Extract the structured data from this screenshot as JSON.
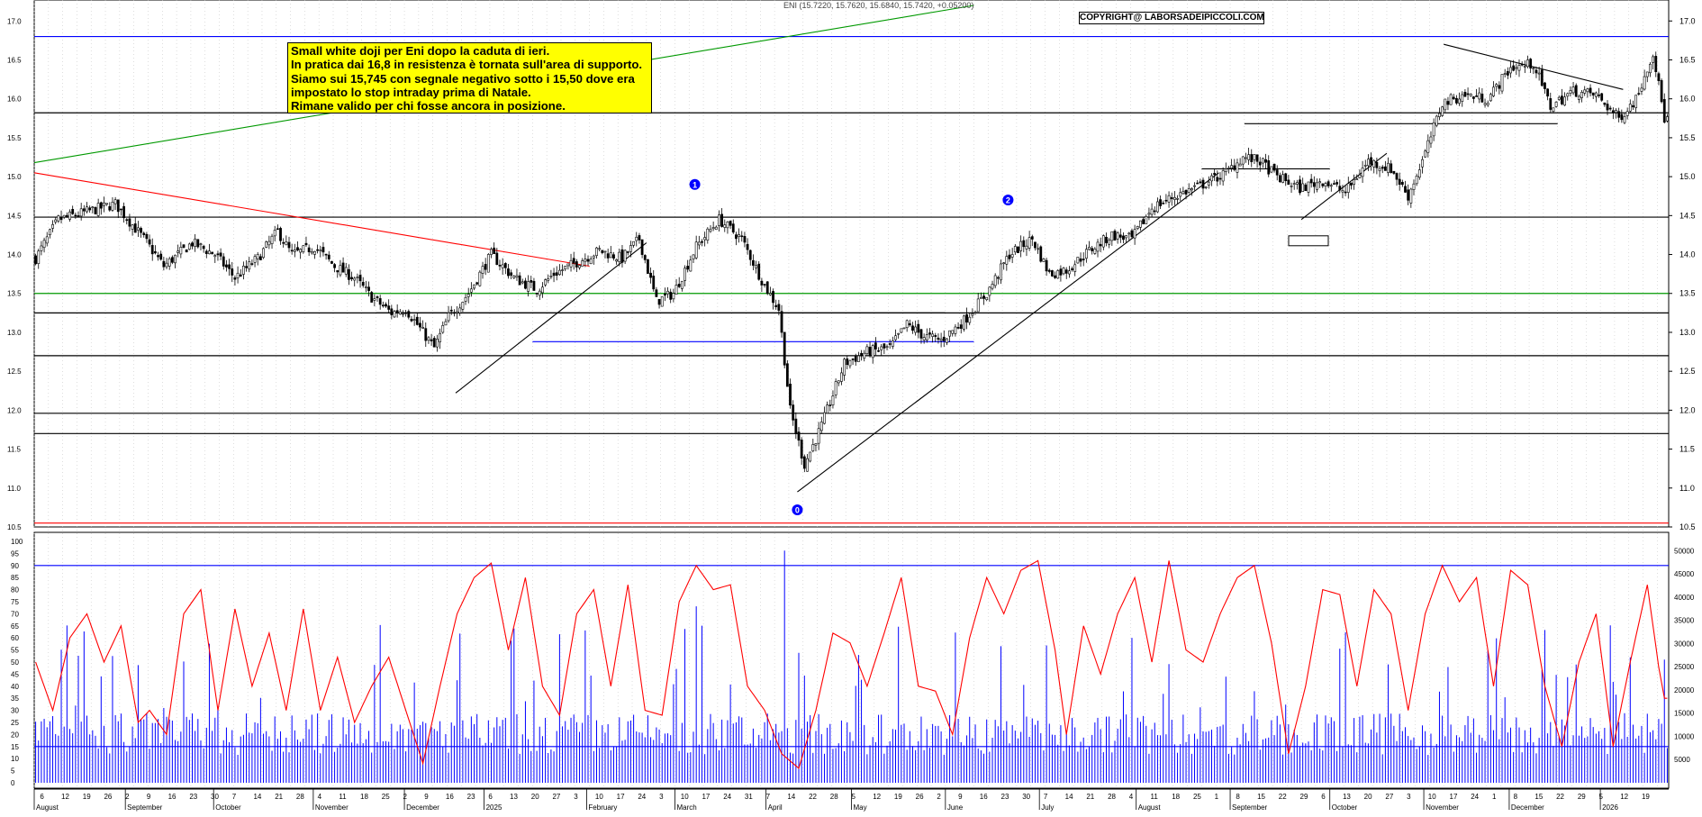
{
  "header": {
    "quote": "ENI (15.7220, 15.7620, 15.6840, 15.7420, +0.05200)",
    "copyright": "COPYRIGHT@ LABORSADEIPICCOLI.COM"
  },
  "note": {
    "lines": [
      "Small white doji per Eni dopo la caduta di ieri.",
      "In pratica dai 16,8 in resistenza è tornata sull'area di supporto.",
      "Siamo sui 15,745 con segnale negativo sotto i 15,50 dove era",
      "impostato lo stop intraday prima di Natale.",
      "Rimane valido per chi fosse ancora in posizione."
    ]
  },
  "colors": {
    "candle": "#000000",
    "oscillator": "#ff0000",
    "volume": "#0000ff",
    "support_lines": "#000000",
    "green_lines": "#009900",
    "blue_lines": "#0000ff",
    "red_trendline": "#ff0000",
    "note_background": "#ffff00"
  },
  "chart_data": [
    {
      "type": "candlestick",
      "title": "",
      "ylim": [
        10.5,
        17.2
      ],
      "y_ticks": [
        "10.5",
        "11.0",
        "11.5",
        "12.0",
        "12.5",
        "13.0",
        "13.5",
        "14.0",
        "14.5",
        "15.0",
        "15.5",
        "16.0",
        "16.5",
        "17.0"
      ],
      "close_path": [
        [
          0,
          13.95
        ],
        [
          8,
          14.45
        ],
        [
          18,
          14.55
        ],
        [
          28,
          14.65
        ],
        [
          38,
          14.2
        ],
        [
          45,
          13.85
        ],
        [
          55,
          14.15
        ],
        [
          63,
          14.0
        ],
        [
          70,
          13.7
        ],
        [
          78,
          13.95
        ],
        [
          85,
          14.3
        ],
        [
          90,
          14.0
        ],
        [
          98,
          14.1
        ],
        [
          105,
          13.85
        ],
        [
          112,
          13.7
        ],
        [
          118,
          13.45
        ],
        [
          125,
          13.25
        ],
        [
          130,
          13.3
        ],
        [
          136,
          13.0
        ],
        [
          140,
          12.8
        ],
        [
          145,
          13.2
        ],
        [
          152,
          13.5
        ],
        [
          160,
          14.0
        ],
        [
          168,
          13.7
        ],
        [
          176,
          13.55
        ],
        [
          182,
          13.75
        ],
        [
          190,
          13.9
        ],
        [
          198,
          14.05
        ],
        [
          206,
          13.95
        ],
        [
          212,
          14.2
        ],
        [
          218,
          13.4
        ],
        [
          224,
          13.5
        ],
        [
          232,
          14.1
        ],
        [
          240,
          14.45
        ],
        [
          248,
          14.2
        ],
        [
          256,
          13.6
        ],
        [
          261,
          13.3
        ],
        [
          265,
          12.0
        ],
        [
          270,
          11.3
        ],
        [
          276,
          11.8
        ],
        [
          284,
          12.6
        ],
        [
          292,
          12.75
        ],
        [
          300,
          12.8
        ],
        [
          306,
          13.1
        ],
        [
          312,
          12.95
        ],
        [
          318,
          12.9
        ],
        [
          326,
          13.15
        ],
        [
          334,
          13.5
        ],
        [
          342,
          14.0
        ],
        [
          350,
          14.2
        ],
        [
          356,
          13.75
        ],
        [
          362,
          13.8
        ],
        [
          370,
          14.05
        ],
        [
          378,
          14.25
        ],
        [
          385,
          14.2
        ],
        [
          392,
          14.6
        ],
        [
          400,
          14.75
        ],
        [
          410,
          14.9
        ],
        [
          418,
          15.05
        ],
        [
          424,
          15.25
        ],
        [
          430,
          15.2
        ],
        [
          436,
          15.0
        ],
        [
          444,
          14.85
        ],
        [
          452,
          14.95
        ],
        [
          460,
          14.8
        ],
        [
          468,
          15.2
        ],
        [
          476,
          15.1
        ],
        [
          482,
          14.75
        ],
        [
          488,
          15.3
        ],
        [
          494,
          15.95
        ],
        [
          502,
          16.05
        ],
        [
          510,
          16.0
        ],
        [
          518,
          16.4
        ],
        [
          526,
          16.45
        ],
        [
          532,
          15.9
        ],
        [
          540,
          16.1
        ],
        [
          548,
          16.05
        ],
        [
          556,
          15.75
        ],
        [
          562,
          16.0
        ],
        [
          568,
          16.6
        ],
        [
          572,
          15.745
        ]
      ],
      "indicators": [
        {
          "label": "0",
          "note": "cerchio blu"
        },
        {
          "label": "1",
          "note": "cerchio blu"
        },
        {
          "label": "2",
          "note": "cerchio blu"
        }
      ],
      "horizontal_levels": [
        {
          "value": 16.8,
          "color": "blue"
        },
        {
          "value": 15.82,
          "color": "black"
        },
        {
          "value": 14.48,
          "color": "black"
        },
        {
          "value": 13.5,
          "color": "green"
        },
        {
          "value": 13.25,
          "color": "black"
        },
        {
          "value": 12.7,
          "color": "black"
        },
        {
          "value": 11.96,
          "color": "black"
        },
        {
          "value": 11.7,
          "color": "black"
        },
        {
          "value": 10.55,
          "color": "red"
        }
      ]
    },
    {
      "type": "line+bar",
      "title": "",
      "oscillator_ticks": [
        "0",
        "5",
        "10",
        "15",
        "20",
        "25",
        "30",
        "35",
        "40",
        "45",
        "50",
        "55",
        "60",
        "65",
        "70",
        "75",
        "80",
        "85",
        "90",
        "95",
        "100"
      ],
      "volume_ticks": [
        "5000",
        "10000",
        "15000",
        "20000",
        "25000",
        "30000",
        "35000",
        "40000",
        "45000",
        "50000"
      ],
      "oscillator_ylim": [
        0,
        100
      ],
      "oscillator_levels": [
        90,
        15
      ],
      "oscillator_path": [
        [
          0,
          50
        ],
        [
          6,
          30
        ],
        [
          12,
          60
        ],
        [
          18,
          70
        ],
        [
          24,
          50
        ],
        [
          30,
          65
        ],
        [
          36,
          25
        ],
        [
          40,
          30
        ],
        [
          46,
          20
        ],
        [
          52,
          70
        ],
        [
          58,
          80
        ],
        [
          64,
          30
        ],
        [
          70,
          72
        ],
        [
          76,
          40
        ],
        [
          82,
          62
        ],
        [
          88,
          30
        ],
        [
          94,
          72
        ],
        [
          100,
          30
        ],
        [
          106,
          52
        ],
        [
          112,
          25
        ],
        [
          118,
          40
        ],
        [
          124,
          52
        ],
        [
          130,
          30
        ],
        [
          136,
          8
        ],
        [
          142,
          40
        ],
        [
          148,
          70
        ],
        [
          154,
          85
        ],
        [
          160,
          91
        ],
        [
          166,
          55
        ],
        [
          172,
          85
        ],
        [
          178,
          40
        ],
        [
          184,
          28
        ],
        [
          190,
          70
        ],
        [
          196,
          80
        ],
        [
          202,
          40
        ],
        [
          208,
          82
        ],
        [
          214,
          30
        ],
        [
          220,
          28
        ],
        [
          226,
          75
        ],
        [
          232,
          90
        ],
        [
          238,
          80
        ],
        [
          244,
          82
        ],
        [
          250,
          40
        ],
        [
          256,
          30
        ],
        [
          262,
          12
        ],
        [
          268,
          6
        ],
        [
          274,
          30
        ],
        [
          280,
          62
        ],
        [
          286,
          58
        ],
        [
          292,
          40
        ],
        [
          298,
          62
        ],
        [
          304,
          85
        ],
        [
          310,
          40
        ],
        [
          316,
          38
        ],
        [
          322,
          20
        ],
        [
          328,
          60
        ],
        [
          334,
          85
        ],
        [
          340,
          70
        ],
        [
          346,
          88
        ],
        [
          352,
          92
        ],
        [
          358,
          55
        ],
        [
          362,
          20
        ],
        [
          368,
          65
        ],
        [
          374,
          45
        ],
        [
          380,
          70
        ],
        [
          386,
          85
        ],
        [
          392,
          50
        ],
        [
          398,
          92
        ],
        [
          404,
          55
        ],
        [
          410,
          50
        ],
        [
          416,
          70
        ],
        [
          422,
          85
        ],
        [
          428,
          90
        ],
        [
          434,
          58
        ],
        [
          440,
          12
        ],
        [
          446,
          40
        ],
        [
          452,
          80
        ],
        [
          458,
          78
        ],
        [
          464,
          40
        ],
        [
          470,
          80
        ],
        [
          476,
          70
        ],
        [
          482,
          30
        ],
        [
          488,
          70
        ],
        [
          494,
          90
        ],
        [
          500,
          75
        ],
        [
          506,
          85
        ],
        [
          512,
          40
        ],
        [
          518,
          88
        ],
        [
          524,
          82
        ],
        [
          530,
          40
        ],
        [
          536,
          15
        ],
        [
          542,
          50
        ],
        [
          548,
          70
        ],
        [
          554,
          15
        ],
        [
          560,
          50
        ],
        [
          566,
          82
        ],
        [
          570,
          48
        ],
        [
          572,
          35
        ]
      ],
      "volume_note": "barre blu di volume giornaliero"
    }
  ],
  "x_axis": {
    "months": [
      {
        "label": "August",
        "pos": 0
      },
      {
        "label": "September",
        "pos": 32
      },
      {
        "label": "October",
        "pos": 63
      },
      {
        "label": "November",
        "pos": 98
      },
      {
        "label": "December",
        "pos": 130
      },
      {
        "label": "2025",
        "pos": 158
      },
      {
        "label": "February",
        "pos": 194
      },
      {
        "label": "March",
        "pos": 225
      },
      {
        "label": "April",
        "pos": 257
      },
      {
        "label": "May",
        "pos": 287
      },
      {
        "label": "June",
        "pos": 320
      },
      {
        "label": "July",
        "pos": 353
      },
      {
        "label": "August",
        "pos": 387
      },
      {
        "label": "September",
        "pos": 420
      },
      {
        "label": "October",
        "pos": 455
      },
      {
        "label": "November",
        "pos": 488
      },
      {
        "label": "December",
        "pos": 518
      },
      {
        "label": "2026",
        "pos": 550
      }
    ],
    "days": [
      "6",
      "12",
      "19",
      "26",
      "2",
      "9",
      "16",
      "23",
      "30",
      "7",
      "14",
      "21",
      "28",
      "4",
      "11",
      "18",
      "25",
      "2",
      "9",
      "16",
      "23",
      "6",
      "13",
      "20",
      "27",
      "3",
      "10",
      "17",
      "24",
      "3",
      "10",
      "17",
      "24",
      "31",
      "7",
      "14",
      "22",
      "28",
      "5",
      "12",
      "19",
      "26",
      "2",
      "9",
      "16",
      "23",
      "30",
      "7",
      "14",
      "21",
      "28",
      "4",
      "11",
      "18",
      "25",
      "1",
      "8",
      "15",
      "22",
      "29",
      "6",
      "13",
      "20",
      "27",
      "3",
      "10",
      "17",
      "24",
      "1",
      "8",
      "15",
      "22",
      "29",
      "5",
      "12",
      "19"
    ]
  }
}
